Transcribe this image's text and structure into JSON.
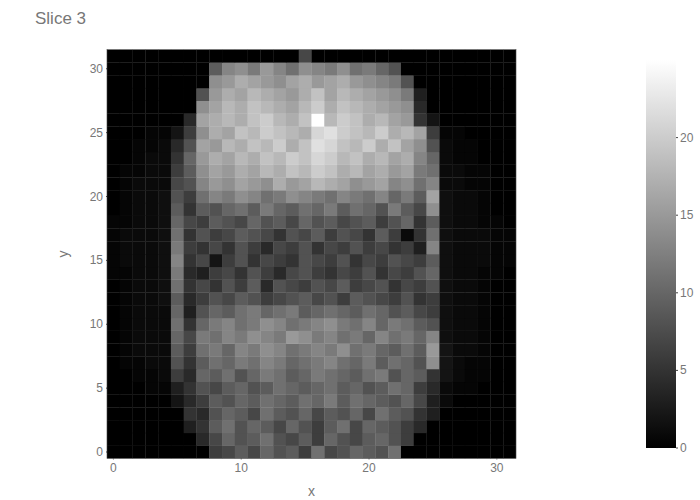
{
  "chart_data": {
    "type": "heatmap",
    "title": "Slice 3",
    "x_label": "x",
    "y_label": "y",
    "xlim": [
      -0.5,
      31.5
    ],
    "xticks": [
      0,
      10,
      20,
      30
    ],
    "ylim": [
      -0.5,
      31.5
    ],
    "yticks": [
      0,
      5,
      10,
      15,
      20,
      25,
      30
    ],
    "colorbar": {
      "range": [
        0,
        25
      ],
      "ticks": [
        0,
        5,
        10,
        15,
        20
      ]
    },
    "cells": [
      [
        0,
        0,
        0,
        0,
        0,
        0,
        0,
        0,
        6,
        7,
        9,
        7,
        10,
        8,
        9,
        6,
        11,
        7,
        8,
        10,
        9,
        8,
        11,
        0,
        0,
        0,
        0,
        0,
        0,
        0,
        0,
        0
      ],
      [
        0,
        0,
        0,
        0,
        0,
        0,
        0,
        4,
        7,
        10,
        8,
        9,
        11,
        8,
        7,
        9,
        6,
        10,
        8,
        7,
        9,
        10,
        8,
        6,
        0,
        0,
        0,
        0,
        0,
        0,
        0,
        0
      ],
      [
        0,
        0,
        0,
        0,
        0,
        0,
        3,
        5,
        9,
        11,
        8,
        10,
        9,
        7,
        10,
        8,
        6,
        9,
        11,
        7,
        10,
        9,
        8,
        6,
        4,
        0,
        0,
        0,
        0,
        0,
        0,
        0
      ],
      [
        0,
        0,
        0,
        0,
        0,
        0,
        5,
        4,
        8,
        10,
        9,
        7,
        11,
        9,
        8,
        10,
        7,
        9,
        8,
        10,
        7,
        11,
        9,
        8,
        5,
        3,
        0,
        0,
        0,
        0,
        0,
        0
      ],
      [
        0,
        0,
        0,
        0,
        0,
        2,
        4,
        6,
        9,
        8,
        10,
        9,
        11,
        10,
        9,
        11,
        10,
        12,
        9,
        11,
        10,
        9,
        8,
        10,
        7,
        3,
        1,
        0,
        0,
        0,
        0,
        0
      ],
      [
        0,
        0,
        0,
        0.5,
        0.5,
        3,
        5,
        8,
        7,
        9,
        10,
        8,
        9,
        11,
        10,
        9,
        10,
        11,
        9,
        10,
        8,
        9,
        11,
        10,
        6,
        4,
        1,
        0.5,
        0.5,
        0,
        0,
        0
      ],
      [
        0,
        0,
        0.5,
        0.5,
        1,
        6,
        4,
        10,
        9,
        11,
        8,
        10,
        12,
        11,
        9,
        10,
        12,
        11,
        10,
        9,
        11,
        12,
        8,
        10,
        9,
        5,
        2,
        1,
        0.5,
        0.5,
        0,
        0
      ],
      [
        0,
        0.5,
        0.5,
        1,
        1,
        8,
        5,
        9,
        11,
        10,
        12,
        11,
        13,
        12,
        10,
        11,
        12,
        13,
        11,
        10,
        12,
        9,
        11,
        10,
        8,
        14,
        2,
        1,
        0.5,
        0.5,
        0,
        0
      ],
      [
        0,
        0.5,
        1,
        1,
        1,
        9,
        6,
        11,
        12,
        10,
        13,
        12,
        14,
        13,
        11,
        12,
        13,
        12,
        14,
        11,
        12,
        10,
        9,
        11,
        9,
        15,
        2,
        1,
        1,
        0.5,
        0,
        0
      ],
      [
        0,
        0.5,
        1,
        1,
        1,
        10,
        7,
        12,
        11,
        13,
        12,
        14,
        13,
        12,
        15,
        14,
        12,
        13,
        11,
        12,
        10,
        13,
        11,
        12,
        10,
        13,
        1.5,
        1,
        1,
        0.5,
        0,
        0
      ],
      [
        0,
        0.5,
        1,
        1,
        1,
        11,
        5,
        10,
        12,
        13,
        11,
        12,
        14,
        13,
        11,
        12,
        13,
        14,
        12,
        11,
        13,
        10,
        12,
        11,
        9,
        8,
        1.5,
        1,
        1,
        0.5,
        0,
        0
      ],
      [
        0,
        0.5,
        1,
        1,
        1,
        10,
        3,
        8,
        10,
        9,
        11,
        12,
        10,
        11,
        12,
        9,
        10,
        11,
        10,
        9,
        11,
        10,
        8,
        9,
        7,
        6,
        1.5,
        1,
        1,
        0.5,
        0,
        0
      ],
      [
        0,
        0.5,
        1,
        1,
        1.5,
        9,
        4,
        6,
        8,
        7,
        9,
        8,
        6,
        7,
        8,
        9,
        7,
        8,
        6,
        9,
        8,
        7,
        6,
        8,
        5,
        6,
        1.5,
        1,
        1,
        0.5,
        0,
        0
      ],
      [
        0,
        0.5,
        1,
        1,
        1.5,
        11,
        5,
        7,
        5,
        8,
        6,
        9,
        4,
        8,
        7,
        6,
        8,
        7,
        9,
        6,
        7,
        8,
        5,
        7,
        6,
        8,
        1.5,
        1,
        1,
        0.5,
        0,
        0
      ],
      [
        0.5,
        0.5,
        1,
        1,
        1.5,
        12,
        4,
        3,
        6,
        7,
        5,
        8,
        6,
        4,
        7,
        8,
        6,
        5,
        7,
        6,
        8,
        5,
        7,
        6,
        8,
        10,
        1.5,
        1,
        1,
        0.5,
        0.5,
        0
      ],
      [
        0.5,
        1,
        1,
        1,
        1.5,
        13,
        5,
        7,
        2,
        6,
        8,
        5,
        7,
        6,
        5,
        8,
        7,
        6,
        8,
        5,
        7,
        6,
        8,
        7,
        6,
        9,
        1.5,
        1,
        1,
        1,
        0.5,
        0.5
      ],
      [
        0.5,
        1,
        1,
        1,
        1.5,
        12,
        6,
        5,
        7,
        5,
        8,
        6,
        4,
        7,
        6,
        8,
        5,
        7,
        6,
        8,
        6,
        7,
        5,
        6,
        3,
        13,
        1.5,
        1,
        1,
        1,
        0.5,
        0.5
      ],
      [
        0.5,
        1,
        1,
        1,
        1.5,
        11,
        5,
        8,
        6,
        7,
        9,
        8,
        7,
        5,
        8,
        7,
        9,
        6,
        8,
        7,
        5,
        9,
        6,
        1,
        5,
        11,
        1.5,
        1,
        1,
        1,
        0.5,
        0.5
      ],
      [
        0.5,
        0.5,
        1,
        1,
        1.5,
        10,
        7,
        6,
        9,
        8,
        7,
        10,
        8,
        9,
        7,
        10,
        8,
        9,
        7,
        8,
        9,
        6,
        8,
        10,
        5,
        9,
        1.5,
        1,
        1,
        0.5,
        0.5,
        0
      ],
      [
        0,
        0.5,
        1,
        1,
        1.5,
        9,
        5,
        9,
        8,
        10,
        11,
        9,
        12,
        10,
        9,
        11,
        10,
        12,
        9,
        11,
        10,
        8,
        12,
        9,
        7,
        14,
        1.5,
        1,
        1,
        0.5,
        0,
        0
      ],
      [
        0,
        0.5,
        1,
        1,
        1.5,
        8,
        6,
        11,
        13,
        12,
        14,
        13,
        11,
        12,
        14,
        13,
        12,
        11,
        13,
        12,
        11,
        13,
        10,
        12,
        9,
        16,
        1.5,
        1,
        1,
        0.5,
        0,
        0
      ],
      [
        0,
        0.5,
        1,
        1,
        1,
        7,
        8,
        13,
        15,
        14,
        16,
        15,
        14,
        17,
        15,
        16,
        18,
        17,
        16,
        14,
        15,
        16,
        13,
        14,
        11,
        13,
        1,
        1,
        0.5,
        0.5,
        0,
        0
      ],
      [
        0,
        0.5,
        0.5,
        1,
        1,
        6,
        9,
        14,
        16,
        15,
        17,
        16,
        18,
        17,
        19,
        18,
        20,
        19,
        17,
        18,
        16,
        17,
        15,
        16,
        12,
        11,
        1,
        1,
        0.5,
        0.5,
        0,
        0
      ],
      [
        0,
        0,
        0.5,
        1,
        1,
        5,
        10,
        15,
        17,
        16,
        18,
        17,
        19,
        18,
        20,
        19,
        21,
        20,
        18,
        19,
        17,
        18,
        16,
        17,
        13,
        10,
        1,
        0.5,
        0.5,
        0,
        0,
        0
      ],
      [
        0,
        0,
        0.5,
        0.5,
        1,
        4,
        8,
        16,
        15,
        18,
        17,
        19,
        18,
        20,
        17,
        19,
        22,
        21,
        19,
        18,
        20,
        17,
        19,
        16,
        14,
        8,
        1,
        0.5,
        0.5,
        0,
        0,
        0
      ],
      [
        0,
        0,
        0,
        0.5,
        0.5,
        2,
        6,
        14,
        17,
        16,
        19,
        18,
        20,
        19,
        18,
        17,
        21,
        22,
        20,
        19,
        18,
        20,
        17,
        18,
        16,
        6,
        0.5,
        0.5,
        0,
        0,
        0,
        0
      ],
      [
        0,
        0,
        0,
        0,
        0,
        0,
        4,
        16,
        17,
        18,
        17,
        19,
        20,
        18,
        17,
        19,
        25,
        18,
        20,
        19,
        17,
        18,
        16,
        15,
        5,
        2,
        0,
        0,
        0,
        0,
        0,
        0
      ],
      [
        0,
        0,
        0,
        0,
        0,
        0,
        0,
        14,
        16,
        18,
        17,
        19,
        18,
        17,
        16,
        18,
        20,
        17,
        19,
        18,
        17,
        16,
        15,
        14,
        4,
        0,
        0,
        0,
        0,
        0,
        0,
        0
      ],
      [
        0,
        0,
        0,
        0,
        0,
        0,
        0,
        8,
        15,
        17,
        16,
        18,
        17,
        16,
        15,
        17,
        19,
        16,
        18,
        17,
        16,
        15,
        14,
        12,
        3,
        0,
        0,
        0,
        0,
        0,
        0,
        0
      ],
      [
        0,
        0,
        0,
        0,
        0,
        0,
        0,
        0,
        14,
        15,
        17,
        16,
        15,
        14,
        16,
        17,
        15,
        16,
        17,
        15,
        14,
        13,
        12,
        8,
        0,
        0,
        0,
        0,
        0,
        0,
        0,
        0
      ],
      [
        0,
        0,
        0,
        0,
        0,
        0,
        0,
        0,
        9,
        13,
        14,
        12,
        15,
        13,
        11,
        14,
        13,
        12,
        14,
        11,
        12,
        10,
        8,
        0,
        0,
        0,
        0,
        0,
        0,
        0,
        0,
        0
      ],
      [
        0,
        0,
        0,
        0,
        0,
        0,
        0,
        0,
        0,
        0,
        0,
        0,
        0,
        0,
        0,
        7,
        0,
        0,
        0,
        0,
        0,
        0,
        0,
        0,
        0,
        0,
        0,
        0,
        0,
        0,
        0,
        0
      ]
    ]
  }
}
